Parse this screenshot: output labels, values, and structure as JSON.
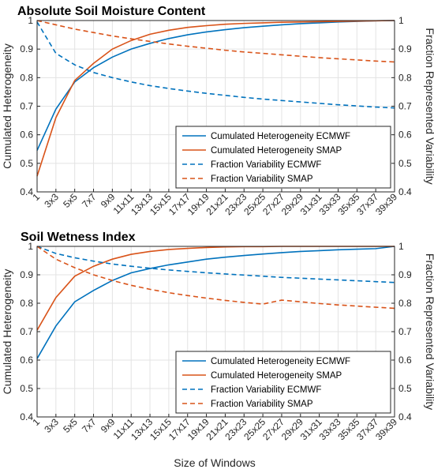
{
  "chart_data": [
    {
      "type": "line",
      "title": "Absolute Soil Moisture Content",
      "ylabel": "Cumulated Heterogeneity",
      "y2label": "Fraction Represented Variability",
      "xlabel": "",
      "categories": [
        "1",
        "3x3",
        "5x5",
        "7x7",
        "9x9",
        "11x11",
        "13x13",
        "15x15",
        "17x17",
        "19x19",
        "21x21",
        "23x23",
        "25x25",
        "27x27",
        "29x29",
        "31x31",
        "33x33",
        "35x35",
        "37x37",
        "39x39"
      ],
      "ylim": [
        0.4,
        1.0
      ],
      "y2lim": [
        0.4,
        1.0
      ],
      "yticks": [
        "0.4",
        "0.5",
        "0.6",
        "0.7",
        "0.8",
        "0.9",
        "1"
      ],
      "grid": true,
      "legend_position": "bottom-right",
      "series": [
        {
          "name": "Cumulated Heterogeneity ECMWF",
          "color": "#0072BD",
          "dash": "solid",
          "axis": "left",
          "values": [
            0.545,
            0.69,
            0.785,
            0.835,
            0.872,
            0.9,
            0.92,
            0.937,
            0.95,
            0.96,
            0.968,
            0.975,
            0.98,
            0.985,
            0.989,
            0.992,
            0.995,
            0.997,
            0.999,
            1.0
          ]
        },
        {
          "name": "Cumulated Heterogeneity SMAP",
          "color": "#D95319",
          "dash": "solid",
          "axis": "left",
          "values": [
            0.455,
            0.66,
            0.79,
            0.85,
            0.9,
            0.93,
            0.952,
            0.966,
            0.976,
            0.982,
            0.987,
            0.99,
            0.992,
            0.994,
            0.995,
            0.996,
            0.997,
            0.998,
            0.999,
            1.0
          ]
        },
        {
          "name": "Fraction Variability ECMWF",
          "color": "#0072BD",
          "dash": "dashed",
          "axis": "right",
          "values": [
            0.995,
            0.885,
            0.845,
            0.818,
            0.8,
            0.785,
            0.772,
            0.762,
            0.753,
            0.745,
            0.738,
            0.731,
            0.725,
            0.72,
            0.715,
            0.71,
            0.705,
            0.701,
            0.697,
            0.694
          ]
        },
        {
          "name": "Fraction Variability SMAP",
          "color": "#D95319",
          "dash": "dashed",
          "axis": "right",
          "values": [
            1.0,
            0.985,
            0.97,
            0.958,
            0.946,
            0.936,
            0.927,
            0.918,
            0.91,
            0.903,
            0.896,
            0.89,
            0.885,
            0.88,
            0.875,
            0.87,
            0.866,
            0.862,
            0.858,
            0.855
          ]
        }
      ]
    },
    {
      "type": "line",
      "title": "Soil Wetness Index",
      "ylabel": "Cumulated Heterogeneity",
      "y2label": "Fraction Represented Variability",
      "xlabel": "Size of Windows",
      "categories": [
        "1",
        "3x3",
        "5x5",
        "7x7",
        "9x9",
        "11x11",
        "13x13",
        "15x15",
        "17x17",
        "19x19",
        "21x21",
        "23x23",
        "25x25",
        "27x27",
        "29x29",
        "31x31",
        "33x33",
        "35x35",
        "37x37",
        "39x39"
      ],
      "ylim": [
        0.4,
        1.0
      ],
      "y2lim": [
        0.4,
        1.0
      ],
      "yticks": [
        "0.4",
        "0.5",
        "0.6",
        "0.7",
        "0.8",
        "0.9",
        "1"
      ],
      "grid": true,
      "legend_position": "bottom-right",
      "series": [
        {
          "name": "Cumulated Heterogeneity ECMWF",
          "color": "#0072BD",
          "dash": "solid",
          "axis": "left",
          "values": [
            0.605,
            0.72,
            0.805,
            0.845,
            0.88,
            0.907,
            0.922,
            0.935,
            0.945,
            0.955,
            0.962,
            0.968,
            0.973,
            0.978,
            0.982,
            0.985,
            0.988,
            0.99,
            0.992,
            1.0
          ]
        },
        {
          "name": "Cumulated Heterogeneity SMAP",
          "color": "#D95319",
          "dash": "solid",
          "axis": "left",
          "values": [
            0.705,
            0.82,
            0.895,
            0.93,
            0.955,
            0.972,
            0.982,
            0.989,
            0.993,
            0.996,
            0.998,
            0.999,
            0.999,
            1.0,
            1.0,
            1.0,
            1.0,
            1.0,
            1.0,
            1.0
          ]
        },
        {
          "name": "Fraction Variability ECMWF",
          "color": "#0072BD",
          "dash": "dashed",
          "axis": "right",
          "values": [
            1.0,
            0.975,
            0.96,
            0.948,
            0.938,
            0.93,
            0.923,
            0.917,
            0.912,
            0.907,
            0.903,
            0.899,
            0.895,
            0.891,
            0.888,
            0.885,
            0.882,
            0.879,
            0.876,
            0.873
          ]
        },
        {
          "name": "Fraction Variability SMAP",
          "color": "#D95319",
          "dash": "dashed",
          "axis": "right",
          "values": [
            1.0,
            0.955,
            0.925,
            0.9,
            0.88,
            0.863,
            0.849,
            0.837,
            0.827,
            0.818,
            0.81,
            0.803,
            0.797,
            0.811,
            0.805,
            0.799,
            0.794,
            0.79,
            0.786,
            0.782
          ]
        }
      ]
    }
  ]
}
